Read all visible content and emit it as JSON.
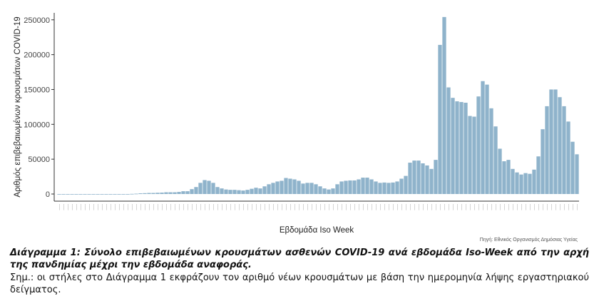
{
  "chart_data": {
    "type": "bar",
    "ylabel": "Αριθμός επιβεβαιωμένων κρουσμάτων COVID-19",
    "xlabel": "Εβδομάδα Iso Week",
    "source": "Πηγή: Εθνικός Οργανισμός Δημόσιας Υγείας",
    "ylim": [
      0,
      260000
    ],
    "yticks": [
      0,
      50000,
      100000,
      150000,
      200000,
      250000
    ],
    "ytick_labels": [
      "0",
      "50000",
      "100000",
      "150000",
      "200000",
      "250000"
    ],
    "grid": false,
    "bar_color": "#8fb3cb",
    "values": [
      0,
      0,
      0,
      0,
      0,
      0,
      0,
      0,
      0,
      0,
      0,
      0,
      0,
      0,
      0,
      0,
      0,
      200,
      500,
      1000,
      1200,
      1500,
      1500,
      1800,
      2000,
      2500,
      2500,
      2500,
      3000,
      4000,
      4000,
      7000,
      10000,
      16000,
      20000,
      19000,
      16000,
      10000,
      8000,
      6500,
      6000,
      6000,
      5500,
      5000,
      6000,
      7500,
      9000,
      8000,
      11000,
      14000,
      16000,
      18000,
      19000,
      23000,
      22000,
      21000,
      19000,
      15000,
      16000,
      16000,
      14000,
      11000,
      8000,
      6500,
      8000,
      14000,
      18000,
      19000,
      19500,
      19500,
      21000,
      23500,
      23500,
      21000,
      18000,
      16000,
      16500,
      16000,
      16500,
      18000,
      22000,
      26000,
      45000,
      48000,
      48000,
      44000,
      41000,
      36000,
      49000,
      214000,
      254000,
      153000,
      138000,
      133000,
      132000,
      131000,
      112000,
      111000,
      140000,
      162000,
      157000,
      123000,
      97000,
      65000,
      47000,
      49000,
      36000,
      31000,
      28000,
      30000,
      29000,
      35000,
      54000,
      93000,
      126000,
      150000,
      150000,
      139000,
      126000,
      104000,
      75000,
      57000
    ]
  },
  "caption": "Διάγραμμα 1: Σύνολο επιβεβαιωμένων κρουσμάτων ασθενών COVID-19 ανά εβδομάδα Iso-Week από την αρχή της πανδημίας μέχρι την εβδομάδα αναφοράς.",
  "note": "Σημ.: οι στήλες στο Διάγραμμα 1 εκφράζουν τον αριθμό νέων κρουσμάτων με βάση την ημερομηνία λήψης εργαστηριακού δείγματος."
}
